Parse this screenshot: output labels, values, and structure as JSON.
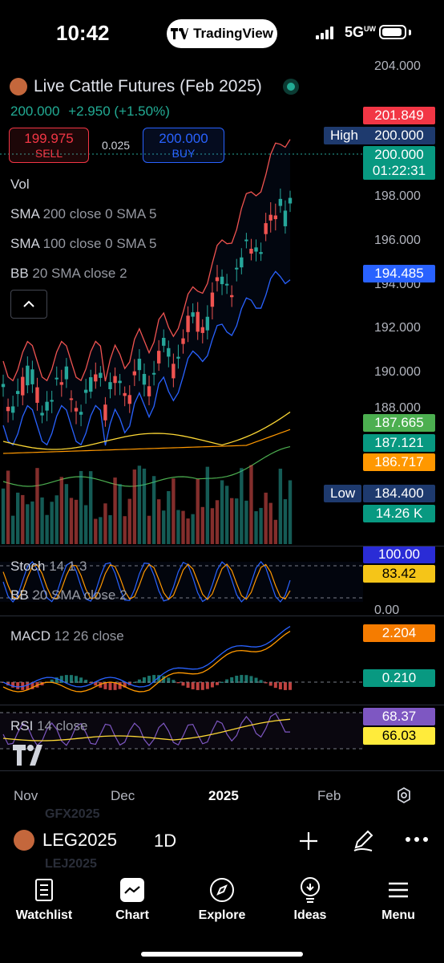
{
  "status": {
    "time": "10:42",
    "network": "5G",
    "network_sup": "UW",
    "app_pill": "TradingView"
  },
  "symbol": {
    "name": "Live Cattle Futures (Feb 2025)",
    "price": "200.000",
    "change": "+2.950",
    "change_pct": "(+1.50%)",
    "sell_price": "199.975",
    "sell_label": "SELL",
    "spread": "0.025",
    "buy_price": "200.000",
    "buy_label": "BUY"
  },
  "indicators": {
    "vol": "Vol",
    "sma200": {
      "name": "SMA",
      "params": "200 close 0 SMA 5"
    },
    "sma100": {
      "name": "SMA",
      "params": "100 close 0 SMA 5"
    },
    "bb": {
      "name": "BB",
      "params": "20 SMA close 2"
    },
    "stoch": {
      "name": "Stoch",
      "params": "14 1 3"
    },
    "bb2": {
      "name": "BB",
      "params": "20 SMA close 2"
    },
    "macd": {
      "name": "MACD",
      "params": "12 26 close"
    },
    "rsi": {
      "name": "RSI",
      "params": "14 close"
    }
  },
  "axis": {
    "prices": [
      "204.000",
      "198.000",
      "196.000",
      "194.000",
      "192.000",
      "190.000",
      "188.000"
    ],
    "high_label": "High",
    "low_label": "Low",
    "stoch_zero": "0.00"
  },
  "tags": {
    "bb_upper": "201.849",
    "high": "200.000",
    "last": "200.000",
    "countdown": "01:22:31",
    "bb_lower": "194.485",
    "green1": "187.665",
    "teal1": "187.121",
    "orange1": "186.717",
    "low": "184.400",
    "vol": "14.26 K",
    "stoch_k": "100.00",
    "stoch_d": "83.42",
    "macd_val": "2.204",
    "macd_hist": "0.210",
    "rsi_val": "68.37",
    "rsi_ma": "66.03"
  },
  "colors": {
    "up": "#26a69a",
    "down": "#ef5350",
    "bb": "#2962ff",
    "orange": "#ff9800",
    "yellow": "#fdd835",
    "purple": "#7e57c2"
  },
  "dates": [
    "Nov",
    "Dec",
    "2025",
    "Feb"
  ],
  "bottom": {
    "ticker": "LEG2025",
    "interval": "1D",
    "ghost_top": "GFX2025",
    "ghost_bottom": "LEJ2025"
  },
  "tabs": [
    {
      "label": "Watchlist",
      "icon": "watchlist-icon"
    },
    {
      "label": "Chart",
      "icon": "chart-icon"
    },
    {
      "label": "Explore",
      "icon": "compass-icon"
    },
    {
      "label": "Ideas",
      "icon": "lightbulb-icon"
    },
    {
      "label": "Menu",
      "icon": "hamburger-icon"
    }
  ]
}
